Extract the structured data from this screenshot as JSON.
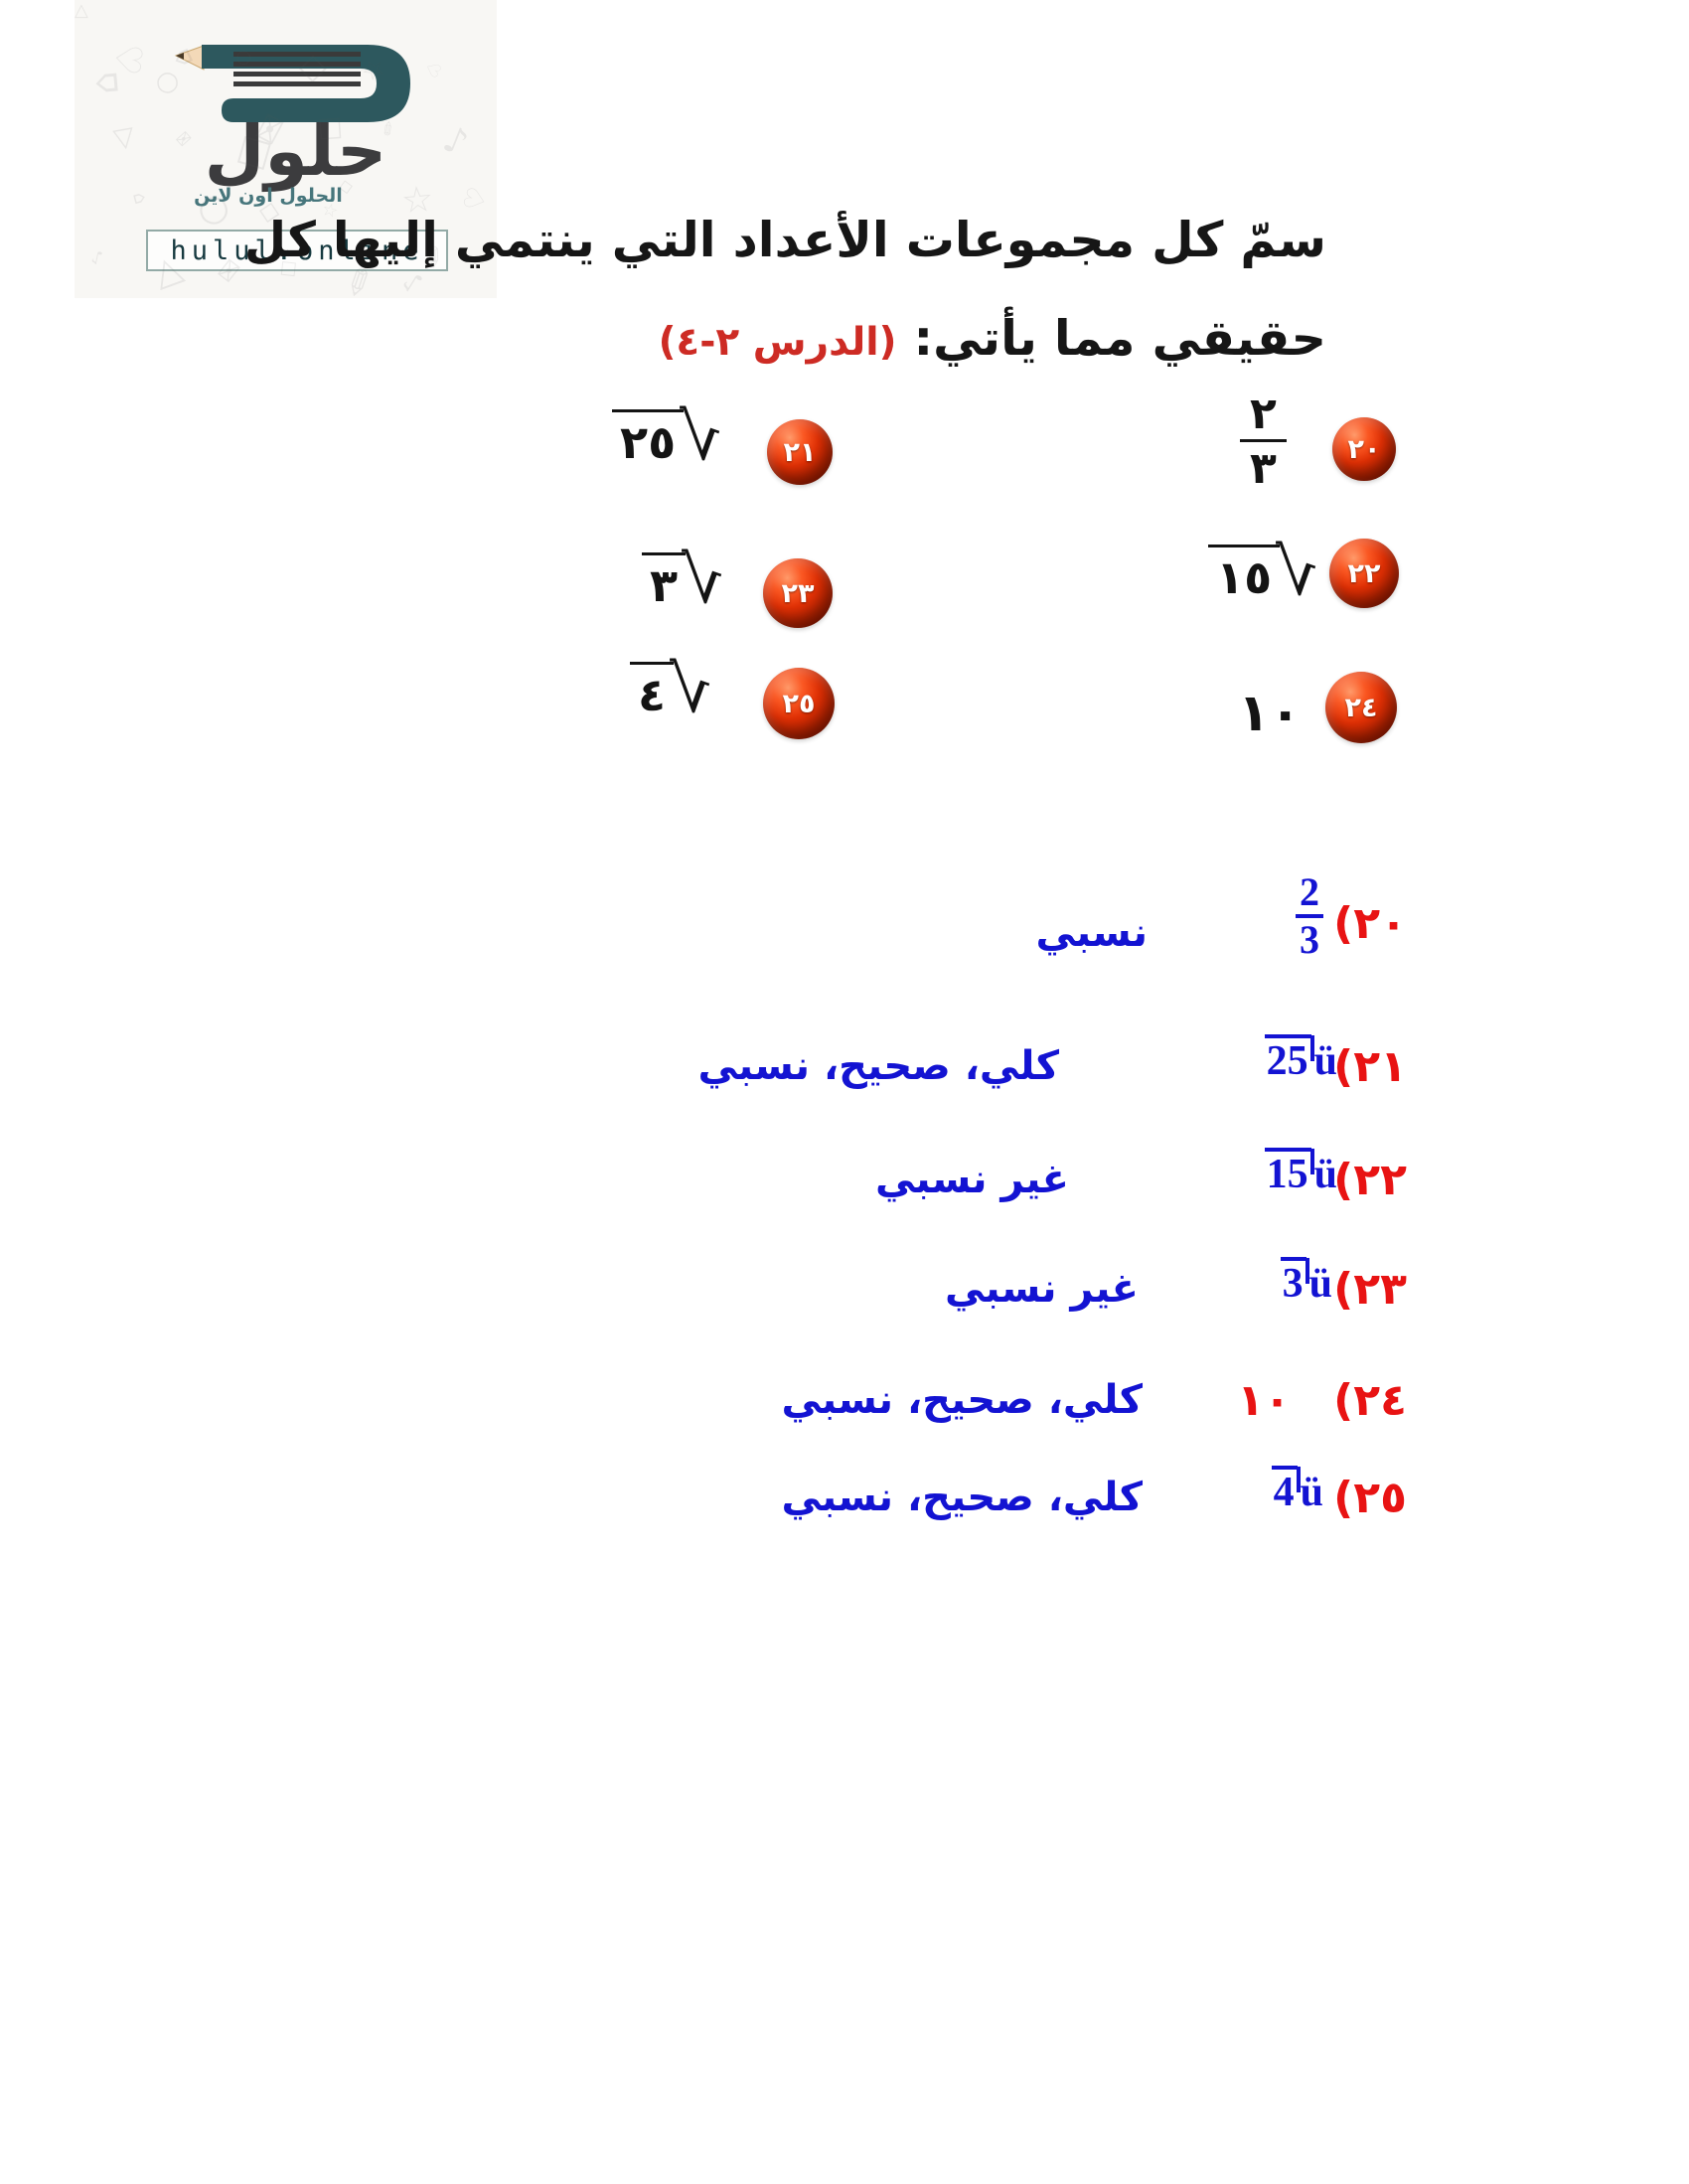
{
  "logo": {
    "brand_arabic": "حلول",
    "tagline_arabic": "الحلول اون لاين",
    "website": "hulul.online",
    "doodles": [
      "△",
      "○",
      "□",
      "☆",
      "♪",
      "⌂",
      "✉",
      "◇",
      "✎",
      "♡"
    ]
  },
  "question": {
    "line1": "سمّ كل مجموعات الأعداد التي ينتمي إليها كل",
    "line2_black": "حقيقي مما يأتي:",
    "lesson_tag": "(الدرس ٢-٤)"
  },
  "problems": [
    {
      "sphere_number": "٢٠",
      "type": "fraction",
      "numerator": "٢",
      "denominator": "٣"
    },
    {
      "sphere_number": "٢١",
      "type": "sqrt",
      "radicand": "٢٥"
    },
    {
      "sphere_number": "٢٢",
      "type": "sqrt",
      "radicand": "١٥"
    },
    {
      "sphere_number": "٢٣",
      "type": "sqrt",
      "radicand": "٣"
    },
    {
      "sphere_number": "٢٤",
      "type": "plain",
      "value": "١٠"
    },
    {
      "sphere_number": "٢٥",
      "type": "sqrt",
      "radicand": "٤"
    }
  ],
  "answers": [
    {
      "label": "(٢٠",
      "value_type": "fraction",
      "num": "2",
      "den": "3",
      "answer": "نسبي"
    },
    {
      "label": "(٢١",
      "value_type": "radical",
      "radicand": "25",
      "glyph": "ü",
      "answer": "كلي، صحيح، نسبي"
    },
    {
      "label": "(٢٢",
      "value_type": "radical",
      "radicand": "15",
      "glyph": "ü",
      "answer": "غير نسبي"
    },
    {
      "label": "(٢٣",
      "value_type": "radical",
      "radicand": "3",
      "glyph": "ü",
      "answer": "غير نسبي"
    },
    {
      "label": "(٢٤",
      "value_type": "plain",
      "value": "١٠",
      "answer": "كلي، صحيح، نسبي"
    },
    {
      "label": "(٢٥",
      "value_type": "radical",
      "radicand": "4",
      "glyph": "ü",
      "answer": "كلي، صحيح، نسبي"
    }
  ],
  "colors": {
    "answer_blue": "#1313d2",
    "label_red": "#e81313",
    "lesson_red": "#cd2b24",
    "logo_teal": "#2d585e",
    "sphere_red": "#d02800"
  }
}
